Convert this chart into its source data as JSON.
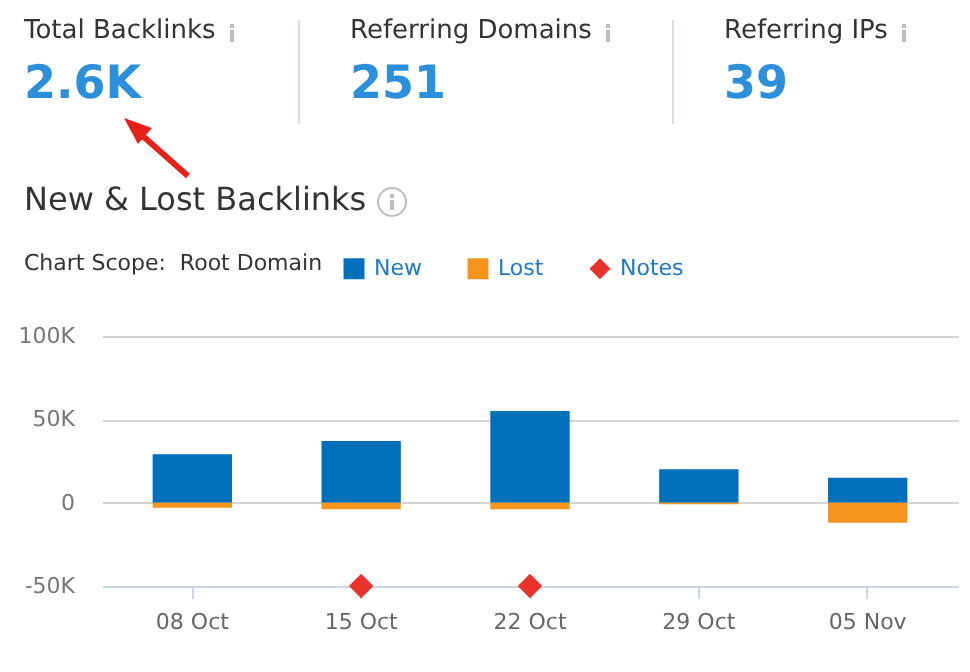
{
  "chart_data": {
    "type": "bar",
    "title": "New & Lost Backlinks",
    "annotations": [
      "Total Backlinks",
      "2.6K",
      "Referring Domains",
      "251",
      "Referring IPs",
      "39",
      "Chart Scope:  Root Domain"
    ],
    "categories": [
      "08 Oct",
      "15 Oct",
      "22 Oct",
      "29 Oct",
      "05 Nov"
    ],
    "series": [
      {
        "name": "New",
        "color": "#0070bb",
        "values": [
          29,
          37,
          55,
          20,
          15
        ]
      },
      {
        "name": "Lost",
        "color": "#f7941d",
        "values": [
          -3,
          -4,
          -4,
          -1,
          -12
        ]
      },
      {
        "name": "Notes",
        "color": "#e8322b",
        "type": "scatter",
        "marker": "diamond",
        "values": [
          null,
          -50,
          -50,
          null,
          null
        ]
      }
    ],
    "stacked": true,
    "ylim": [
      -50,
      100
    ],
    "yticks": [
      {
        "value": -50,
        "label": "-50K"
      },
      0,
      {
        "value": 50,
        "label": "50K"
      },
      {
        "value": 100,
        "label": "100K"
      }
    ],
    "grid": "y",
    "legend": "top left"
  }
}
